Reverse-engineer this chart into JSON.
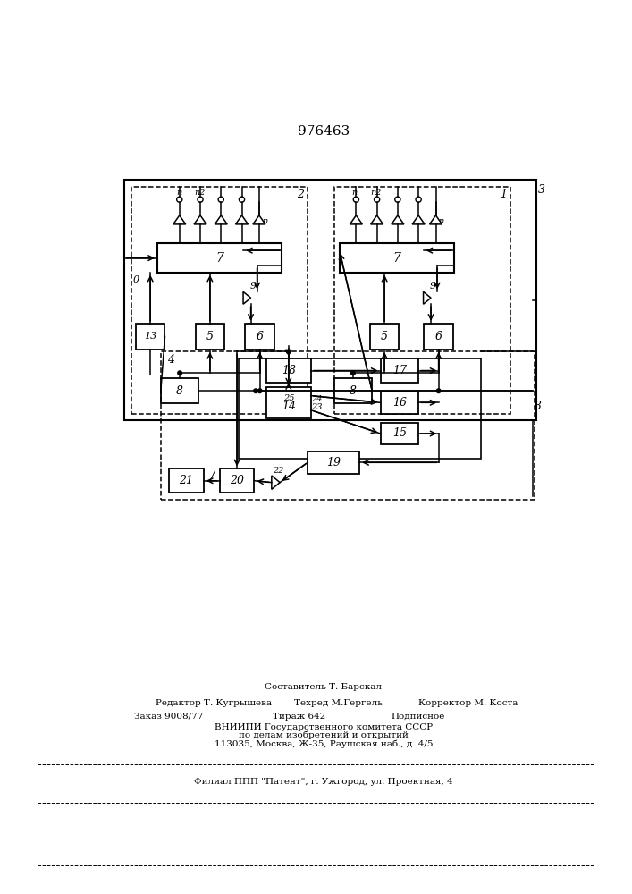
{
  "title": "976463",
  "bg_color": "#ffffff",
  "fig_width": 7.07,
  "fig_height": 10.0,
  "footer": {
    "line1": "Составитель Т. Барскал",
    "line2_left": "Редактор Т. Кугрышева",
    "line2_mid": "Техред М.Гергель",
    "line2_right": "Корректор М. Коста",
    "line3_left": "Заказ 9008/77",
    "line3_mid": "Тираж 642",
    "line3_right": "Подписное",
    "line4": "ВНИИПИ Государственного комитета СССР",
    "line5": "по делам изобретений и открытий",
    "line6": "113035, Москва, Ж-35, Раушская наб., д. 4/5",
    "line7": "Филиал ППП \"Патент\", г. Ужгород, ул. Проектная, 4"
  }
}
